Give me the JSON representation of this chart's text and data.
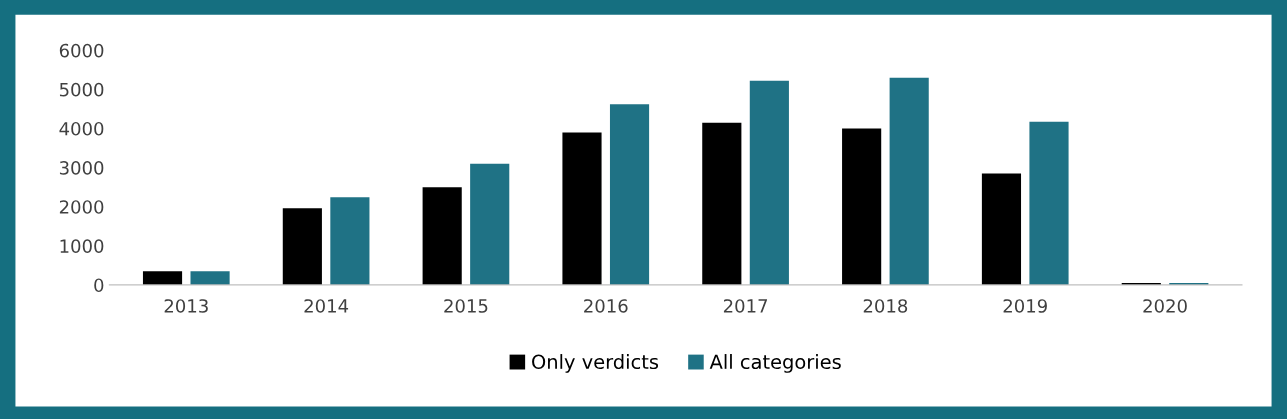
{
  "chart_data": {
    "type": "bar",
    "categories": [
      "2013",
      "2014",
      "2015",
      "2016",
      "2017",
      "2018",
      "2019",
      "2020"
    ],
    "series": [
      {
        "name": "Only verdicts",
        "color": "#000000",
        "values": [
          350,
          1960,
          2500,
          3900,
          4150,
          4000,
          2850,
          50
        ]
      },
      {
        "name": "All categories",
        "color": "#1f7285",
        "values": [
          350,
          2240,
          3100,
          4620,
          5220,
          5300,
          4170,
          50
        ]
      }
    ],
    "ylim": [
      0,
      6000
    ],
    "yticks": [
      0,
      1000,
      2000,
      3000,
      4000,
      5000,
      6000
    ],
    "grid": false,
    "legend": "bottom"
  }
}
